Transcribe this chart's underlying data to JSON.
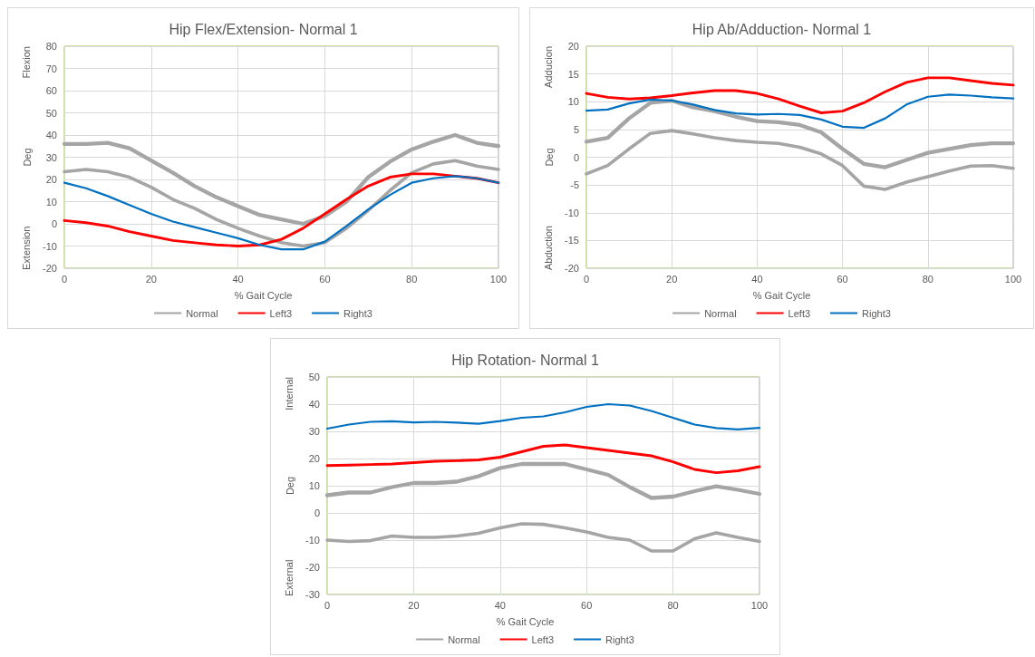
{
  "chart_data": [
    {
      "type": "line",
      "title": "Hip Flex/Extension- Normal 1",
      "xlabel": "% Gait Cycle",
      "ylabel": "Deg",
      "annotations": [
        "Flexion",
        "Extension"
      ],
      "x": [
        0,
        5,
        10,
        15,
        20,
        25,
        30,
        35,
        40,
        45,
        50,
        55,
        60,
        65,
        70,
        75,
        80,
        85,
        90,
        95,
        100
      ],
      "xlim": [
        0,
        100
      ],
      "xticks": [
        0,
        20,
        40,
        60,
        80,
        100
      ],
      "ylim": [
        -20,
        80
      ],
      "yticks": [
        -20,
        -10,
        0,
        10,
        20,
        30,
        40,
        50,
        60,
        70,
        80
      ],
      "grid": true,
      "legend": "bottom",
      "marker": "none",
      "line_style": "solid",
      "series": [
        {
          "name": "Normal",
          "color": "#a5a5a5",
          "values": [
            36,
            36,
            36.5,
            34,
            28.5,
            23,
            17,
            12,
            8,
            4,
            2,
            0,
            3.5,
            10,
            21,
            28,
            33.5,
            37,
            40,
            36.5,
            35
          ]
        },
        {
          "color": "#a5a5a5",
          "values": [
            23.5,
            24.5,
            23.5,
            21,
            16.5,
            11,
            7,
            2,
            -2,
            -5.5,
            -8.5,
            -10,
            -8.5,
            -2,
            6,
            15,
            23,
            27,
            28.5,
            26,
            24.5
          ]
        },
        {
          "name": "Left3",
          "color": "#ff0000",
          "values": [
            1.5,
            0.5,
            -1,
            -3.5,
            -5.5,
            -7.5,
            -8.5,
            -9.5,
            -10,
            -9.5,
            -7,
            -2,
            4.5,
            11,
            17,
            21,
            22.5,
            22.5,
            21.5,
            20.5,
            18.5
          ]
        },
        {
          "name": "Right3",
          "color": "#0070c0",
          "values": [
            18.5,
            16,
            12.5,
            8.5,
            4.5,
            1,
            -1.5,
            -4,
            -6.5,
            -9.5,
            -11.5,
            -11.5,
            -8,
            -1,
            6.5,
            13,
            18.5,
            20.5,
            21.5,
            20.5,
            18.5
          ]
        }
      ]
    },
    {
      "type": "line",
      "title": "Hip Ab/Adduction- Normal 1",
      "xlabel": "% Gait Cycle",
      "ylabel": "Deg",
      "annotations": [
        "Adducion",
        "Abduction"
      ],
      "x": [
        0,
        5,
        10,
        15,
        20,
        25,
        30,
        35,
        40,
        45,
        50,
        55,
        60,
        65,
        70,
        75,
        80,
        85,
        90,
        95,
        100
      ],
      "xlim": [
        0,
        100
      ],
      "xticks": [
        0,
        20,
        40,
        60,
        80,
        100
      ],
      "ylim": [
        -20,
        20
      ],
      "yticks": [
        -20,
        -15,
        -10,
        -5,
        0,
        5,
        10,
        15,
        20
      ],
      "grid": true,
      "legend": "bottom",
      "marker": "none",
      "line_style": "solid",
      "series": [
        {
          "name": "Normal",
          "color": "#a5a5a5",
          "values": [
            2.8,
            3.5,
            7,
            9.8,
            10.2,
            9,
            8.3,
            7.3,
            6.5,
            6.3,
            5.8,
            4.5,
            1.5,
            -1.2,
            -1.8,
            -0.5,
            0.8,
            1.5,
            2.2,
            2.5,
            2.5
          ]
        },
        {
          "color": "#a5a5a5",
          "values": [
            -3,
            -1.5,
            1.5,
            4.3,
            4.8,
            4.2,
            3.5,
            3,
            2.7,
            2.5,
            1.8,
            0.6,
            -1.5,
            -5.2,
            -5.8,
            -4.5,
            -3.5,
            -2.5,
            -1.6,
            -1.5,
            -2
          ]
        },
        {
          "name": "Left3",
          "color": "#ff0000",
          "values": [
            11.5,
            10.8,
            10.5,
            10.7,
            11.1,
            11.6,
            12,
            12,
            11.5,
            10.5,
            9.2,
            8,
            8.3,
            9.8,
            11.8,
            13.5,
            14.3,
            14.3,
            13.8,
            13.3,
            13
          ]
        },
        {
          "name": "Right3",
          "color": "#0070c0",
          "values": [
            8.4,
            8.6,
            9.7,
            10.4,
            10.2,
            9.5,
            8.5,
            7.9,
            7.7,
            7.8,
            7.6,
            6.8,
            5.5,
            5.3,
            7,
            9.5,
            10.9,
            11.3,
            11.1,
            10.8,
            10.6
          ]
        }
      ]
    },
    {
      "type": "line",
      "title": "Hip Rotation- Normal 1",
      "xlabel": "% Gait Cycle",
      "ylabel": "Deg",
      "annotations": [
        "Internal",
        "External"
      ],
      "x": [
        0,
        5,
        10,
        15,
        20,
        25,
        30,
        35,
        40,
        45,
        50,
        55,
        60,
        65,
        70,
        75,
        80,
        85,
        90,
        95,
        100
      ],
      "xlim": [
        0,
        100
      ],
      "xticks": [
        0,
        20,
        40,
        60,
        80,
        100
      ],
      "ylim": [
        -30,
        50
      ],
      "yticks": [
        -30,
        -20,
        -10,
        0,
        10,
        20,
        30,
        40,
        50
      ],
      "grid": true,
      "legend": "bottom",
      "marker": "none",
      "line_style": "solid",
      "series": [
        {
          "name": "Normal",
          "color": "#a5a5a5",
          "values": [
            6.5,
            7.5,
            7.5,
            9.5,
            11,
            11,
            11.5,
            13.5,
            16.5,
            18,
            18,
            18,
            16,
            14,
            9.5,
            5.5,
            6,
            8,
            9.8,
            8.5,
            7
          ]
        },
        {
          "color": "#a5a5a5",
          "values": [
            -10,
            -10.5,
            -10.2,
            -8.5,
            -9,
            -9,
            -8.5,
            -7.5,
            -5.5,
            -4,
            -4.2,
            -5.5,
            -7,
            -9,
            -10,
            -14,
            -14,
            -9.5,
            -7.3,
            -9,
            -10.5
          ]
        },
        {
          "name": "Left3",
          "color": "#ff0000",
          "values": [
            17.4,
            17.6,
            17.8,
            18,
            18.5,
            19,
            19.2,
            19.5,
            20.5,
            22.5,
            24.5,
            25,
            24,
            23,
            22,
            21,
            18.8,
            16,
            14.8,
            15.5,
            17
          ]
        },
        {
          "name": "Right3",
          "color": "#0070c0",
          "values": [
            31,
            32.5,
            33.5,
            33.7,
            33.3,
            33.5,
            33.2,
            32.8,
            33.8,
            35,
            35.5,
            37,
            39,
            40,
            39.5,
            37.5,
            35,
            32.5,
            31.2,
            30.7,
            31.3
          ]
        }
      ]
    }
  ]
}
